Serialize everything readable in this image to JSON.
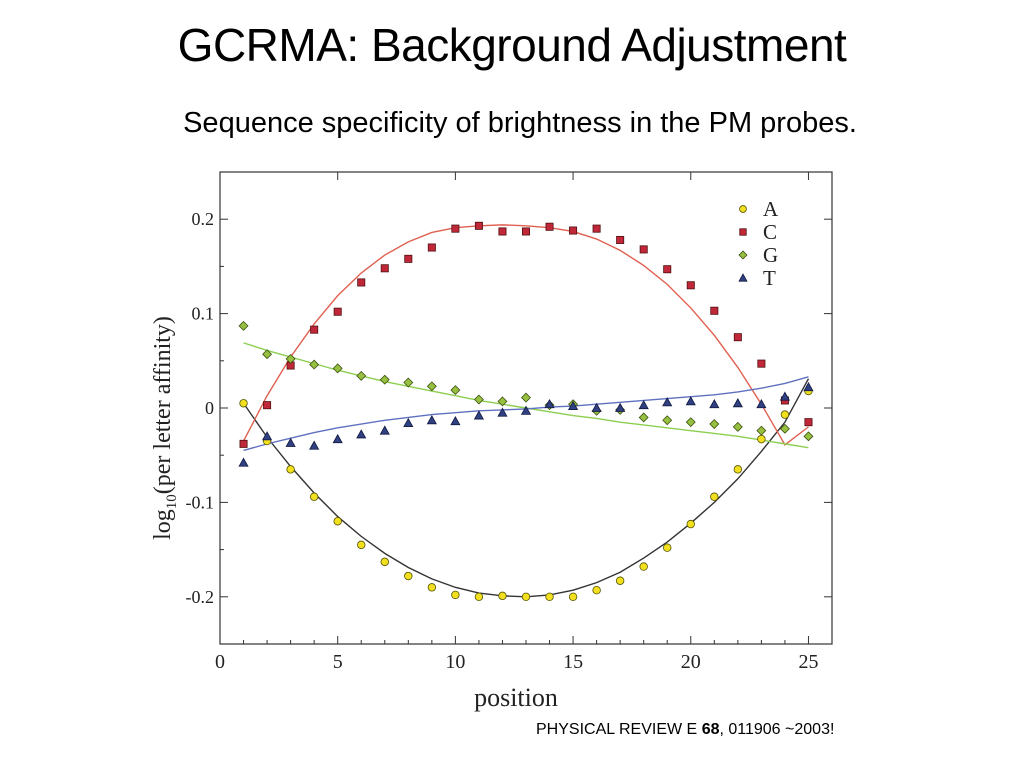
{
  "title": "GCRMA: Background Adjustment",
  "subtitle": "Sequence specificity of brightness in the PM probes.",
  "citation": {
    "journal": "PHYSICAL REVIEW E",
    "volume": "68",
    "rest": ", 011906 ~2003!"
  },
  "chart_data": {
    "type": "scatter",
    "xlabel": "position",
    "ylabel_prefix": "log",
    "ylabel_sub": "10",
    "ylabel_suffix": "(per letter affinity)",
    "xlim": [
      0,
      26
    ],
    "ylim": [
      -0.25,
      0.25
    ],
    "xticks": [
      0,
      5,
      10,
      15,
      20,
      25
    ],
    "yticks": [
      0.2,
      0.1,
      0,
      -0.1,
      -0.2
    ],
    "ytick_labels": [
      "0.2",
      "0.1",
      "0",
      "-0.1",
      "-0.2"
    ],
    "legend_position": "top-right",
    "grid": false,
    "x": [
      1,
      2,
      3,
      4,
      5,
      6,
      7,
      8,
      9,
      10,
      11,
      12,
      13,
      14,
      15,
      16,
      17,
      18,
      19,
      20,
      21,
      22,
      23,
      24,
      25
    ],
    "series": [
      {
        "name": "A",
        "marker": "circle",
        "color": "#f2e020",
        "edge": "#555500",
        "fit_color": "#333333",
        "values": [
          0.005,
          -0.035,
          -0.065,
          -0.094,
          -0.12,
          -0.145,
          -0.163,
          -0.178,
          -0.19,
          -0.198,
          -0.2,
          -0.199,
          -0.2,
          -0.2,
          -0.2,
          -0.193,
          -0.183,
          -0.168,
          -0.148,
          -0.123,
          -0.094,
          -0.065,
          -0.033,
          -0.007,
          0.018
        ],
        "fit": [
          0.005,
          -0.031,
          -0.062,
          -0.09,
          -0.115,
          -0.136,
          -0.154,
          -0.169,
          -0.181,
          -0.19,
          -0.196,
          -0.199,
          -0.2,
          -0.198,
          -0.193,
          -0.185,
          -0.174,
          -0.159,
          -0.142,
          -0.122,
          -0.1,
          -0.075,
          -0.046,
          -0.015,
          0.031
        ]
      },
      {
        "name": "C",
        "marker": "square",
        "color": "#c0283a",
        "edge": "#501010",
        "fit_color": "#e06050",
        "values": [
          -0.038,
          0.003,
          0.045,
          0.083,
          0.102,
          0.133,
          0.148,
          0.158,
          0.17,
          0.19,
          0.193,
          0.187,
          0.187,
          0.192,
          0.188,
          0.19,
          0.178,
          0.168,
          0.147,
          0.13,
          0.103,
          0.075,
          0.047,
          0.008,
          -0.015
        ],
        "fit": [
          -0.035,
          0.013,
          0.054,
          0.089,
          0.119,
          0.143,
          0.162,
          0.176,
          0.186,
          0.191,
          0.193,
          0.194,
          0.193,
          0.191,
          0.187,
          0.179,
          0.167,
          0.151,
          0.131,
          0.106,
          0.077,
          0.043,
          0.004,
          -0.039,
          -0.02
        ]
      },
      {
        "name": "G",
        "marker": "diamond",
        "color": "#98c040",
        "edge": "#3a5010",
        "fit_color": "#8ccf50",
        "values": [
          0.087,
          0.057,
          0.052,
          0.046,
          0.042,
          0.034,
          0.03,
          0.027,
          0.023,
          0.019,
          0.009,
          0.007,
          0.011,
          0.003,
          0.004,
          -0.003,
          -0.002,
          -0.01,
          -0.013,
          -0.015,
          -0.017,
          -0.02,
          -0.024,
          -0.022,
          -0.03
        ],
        "fit": [
          0.069,
          0.061,
          0.054,
          0.047,
          0.04,
          0.034,
          0.028,
          0.023,
          0.018,
          0.013,
          0.008,
          0.004,
          0.0,
          -0.004,
          -0.008,
          -0.011,
          -0.015,
          -0.018,
          -0.021,
          -0.024,
          -0.027,
          -0.03,
          -0.034,
          -0.038,
          -0.042
        ]
      },
      {
        "name": "T",
        "marker": "triangle",
        "color": "#304080",
        "edge": "#101840",
        "fit_color": "#6070c0",
        "values": [
          -0.058,
          -0.03,
          -0.037,
          -0.04,
          -0.033,
          -0.028,
          -0.024,
          -0.016,
          -0.013,
          -0.014,
          -0.008,
          -0.005,
          -0.003,
          0.004,
          0.002,
          0.0,
          0.0,
          0.003,
          0.006,
          0.007,
          0.004,
          0.005,
          0.004,
          0.012,
          0.022
        ],
        "fit": [
          -0.045,
          -0.038,
          -0.032,
          -0.026,
          -0.021,
          -0.017,
          -0.013,
          -0.01,
          -0.007,
          -0.005,
          -0.003,
          -0.002,
          -0.001,
          0.001,
          0.002,
          0.004,
          0.006,
          0.008,
          0.01,
          0.012,
          0.014,
          0.017,
          0.021,
          0.026,
          0.033
        ]
      }
    ]
  }
}
